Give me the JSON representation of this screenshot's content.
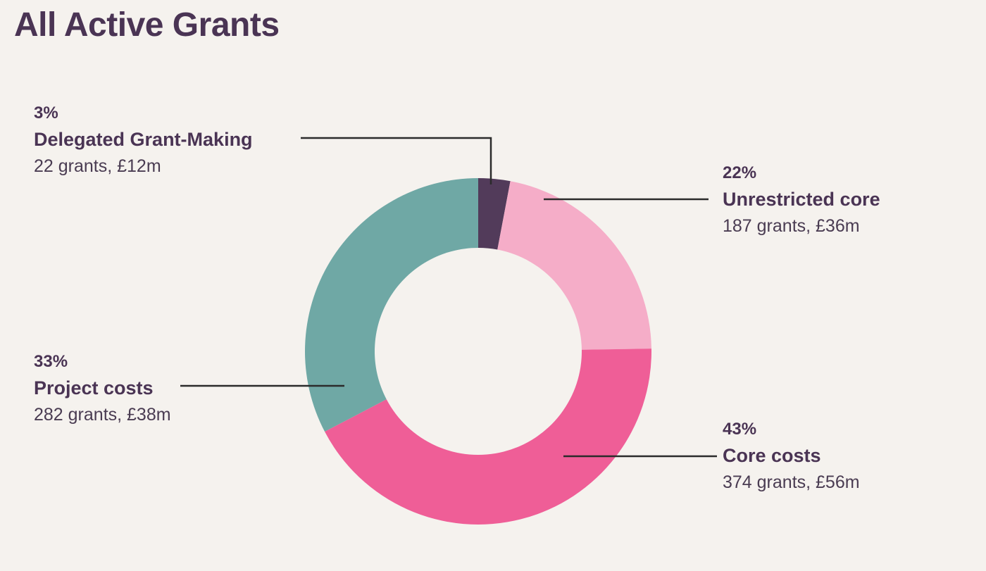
{
  "title": "All Active Grants",
  "colors": {
    "background": "#f5f2ee",
    "text": "#4a3454",
    "leader": "#2b2b2b"
  },
  "chart_data": {
    "type": "pie",
    "donut": true,
    "title": "All Active Grants",
    "slices": [
      {
        "label": "Delegated Grant-Making",
        "percent": 3,
        "pct_label": "3%",
        "detail": "22 grants, £12m",
        "grants": 22,
        "amount_m": 12,
        "color": "#523b5a"
      },
      {
        "label": "Unrestricted core",
        "percent": 22,
        "pct_label": "22%",
        "detail": "187 grants, £36m",
        "grants": 187,
        "amount_m": 36,
        "color": "#f5adc8"
      },
      {
        "label": "Core costs",
        "percent": 43,
        "pct_label": "43%",
        "detail": "374 grants, £56m",
        "grants": 374,
        "amount_m": 56,
        "color": "#ef5e97"
      },
      {
        "label": "Project costs",
        "percent": 33,
        "pct_label": "33%",
        "detail": "282 grants, £38m",
        "grants": 282,
        "amount_m": 38,
        "color": "#6fa8a5"
      }
    ]
  }
}
